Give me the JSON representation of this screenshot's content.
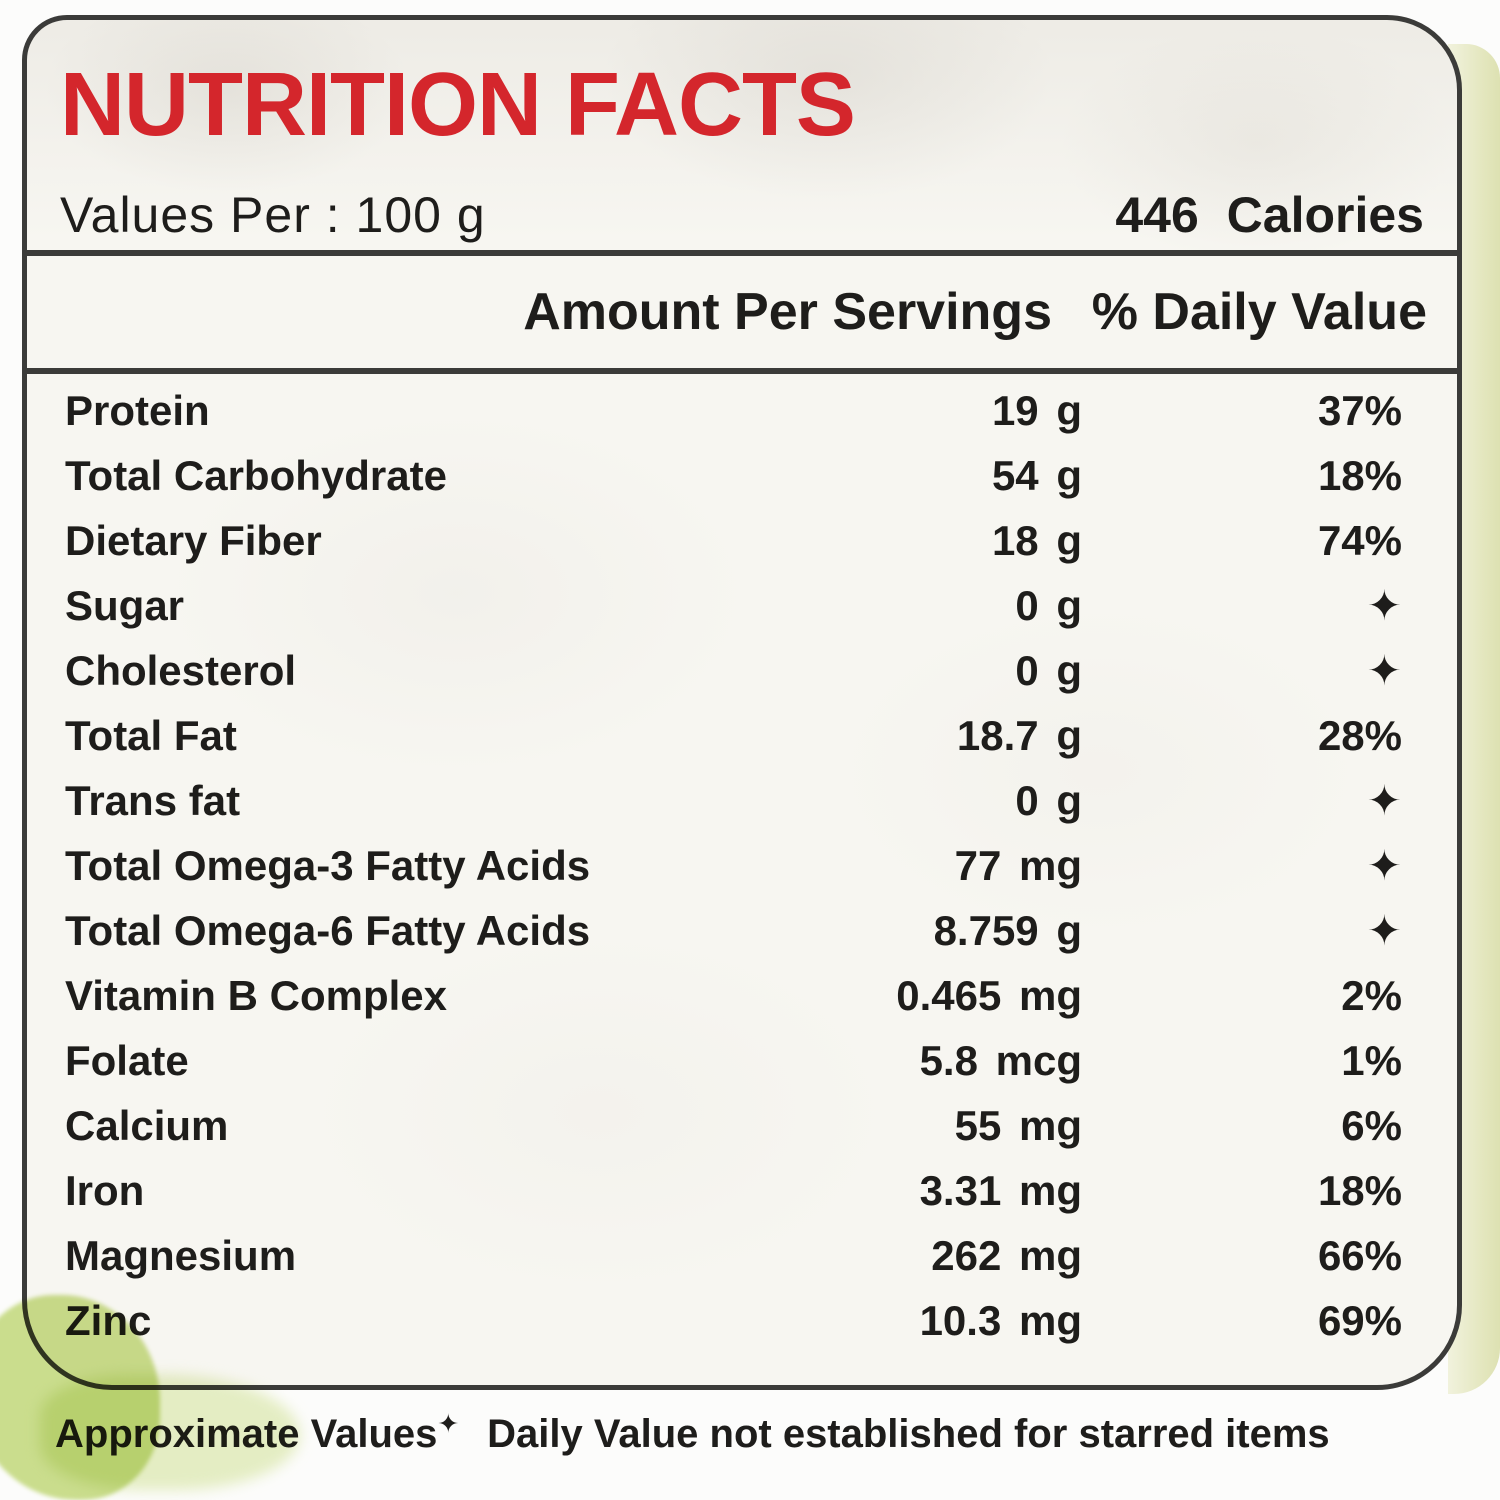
{
  "label": {
    "title": "NUTRITION FACTS",
    "serving": {
      "values_per": "Values Per : 100 g",
      "calories": "446 Calories"
    },
    "header": {
      "amount_col": "Amount Per Servings",
      "dv_col": "% Daily Value"
    },
    "rows": [
      {
        "name": "Protein",
        "amount": "19 g",
        "dv": "37%"
      },
      {
        "name": "Total Carbohydrate",
        "amount": "54 g",
        "dv": "18%"
      },
      {
        "name": "Dietary Fiber",
        "amount": "18 g",
        "dv": "74%"
      },
      {
        "name": "Sugar",
        "amount": "0 g",
        "dv": "✦"
      },
      {
        "name": "Cholesterol",
        "amount": "0 g",
        "dv": "✦"
      },
      {
        "name": "Total Fat",
        "amount": "18.7 g",
        "dv": "28%"
      },
      {
        "name": "Trans fat",
        "amount": "0 g",
        "dv": "✦"
      },
      {
        "name": "Total Omega-3 Fatty Acids",
        "amount": "77 mg",
        "dv": "✦"
      },
      {
        "name": "Total Omega-6 Fatty Acids",
        "amount": "8.759 g",
        "dv": "✦"
      },
      {
        "name": "Vitamin B Complex",
        "amount": "0.465 mg",
        "dv": "2%"
      },
      {
        "name": "Folate",
        "amount": "5.8 mcg",
        "dv": "1%"
      },
      {
        "name": "Calcium",
        "amount": "55 mg",
        "dv": "6%"
      },
      {
        "name": "Iron",
        "amount": "3.31 mg",
        "dv": "18%"
      },
      {
        "name": "Magnesium",
        "amount": "262 mg",
        "dv": "66%"
      },
      {
        "name": "Zinc",
        "amount": "10.3 mg",
        "dv": "69%"
      }
    ],
    "footnote": {
      "prefix": "Approximate Values",
      "star": "✦",
      "note": "Daily Value not established for starred items"
    },
    "icons": {
      "star_symbol": "✦"
    },
    "colors": {
      "title_red": "#d4262c",
      "text_black": "#1e1d1b",
      "border_dark": "#3b3b39",
      "highlight_green": "#cde08f",
      "sheet_edge_green": "#e3e6bd",
      "label_bg": "#f7f6f1"
    }
  }
}
